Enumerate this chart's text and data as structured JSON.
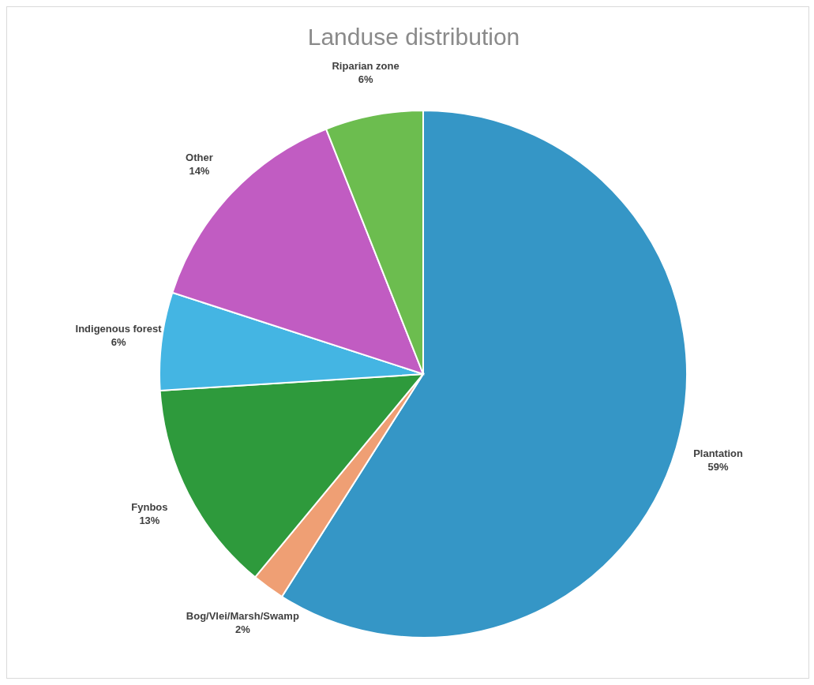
{
  "chart_data": {
    "type": "pie",
    "title": "Landuse distribution",
    "categories": [
      "Plantation",
      "Bog/Vlei/Marsh/Swamp",
      "Fynbos",
      "Indigenous forest",
      "Other",
      "Riparian zone"
    ],
    "values": [
      59,
      2,
      13,
      6,
      14,
      6
    ],
    "value_labels": [
      "59%",
      "2%",
      "13%",
      "6%",
      "14%",
      "6%"
    ],
    "colors": [
      "#3596c6",
      "#ef9f74",
      "#2e9a3c",
      "#44b5e3",
      "#c15cc2",
      "#6cbd4f"
    ]
  }
}
